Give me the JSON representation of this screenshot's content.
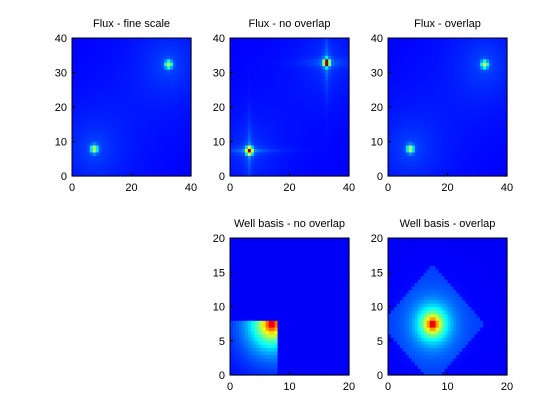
{
  "figure": {
    "background": "#ffffff"
  },
  "chart_data": [
    {
      "type": "heatmap",
      "title": "Flux - fine scale",
      "xlim": [
        0,
        40
      ],
      "ylim": [
        0,
        40
      ],
      "xticks": [
        "0",
        "20",
        "40"
      ],
      "yticks": [
        "0",
        "10",
        "20",
        "30",
        "40"
      ],
      "colormap": "jet",
      "background_level": 0.12,
      "peaks": [
        {
          "x": 7.5,
          "y": 8,
          "max": 0.55,
          "shape": "spot"
        },
        {
          "x": 32.5,
          "y": 32.5,
          "max": 0.55,
          "shape": "spot"
        }
      ]
    },
    {
      "type": "heatmap",
      "title": "Flux - no overlap",
      "xlim": [
        0,
        40
      ],
      "ylim": [
        0,
        40
      ],
      "xticks": [
        "0",
        "20",
        "40"
      ],
      "yticks": [
        "0",
        "10",
        "20",
        "30",
        "40"
      ],
      "colormap": "jet",
      "background_level": 0.12,
      "peaks": [
        {
          "x": 6.5,
          "y": 7.5,
          "max": 0.98,
          "shape": "cross"
        },
        {
          "x": 32.5,
          "y": 33,
          "max": 0.98,
          "shape": "cross"
        }
      ]
    },
    {
      "type": "heatmap",
      "title": "Flux - overlap",
      "xlim": [
        0,
        40
      ],
      "ylim": [
        0,
        40
      ],
      "xticks": [
        "0",
        "20",
        "40"
      ],
      "yticks": [
        "0",
        "10",
        "20",
        "30",
        "40"
      ],
      "colormap": "jet",
      "background_level": 0.12,
      "peaks": [
        {
          "x": 7.5,
          "y": 8,
          "max": 0.55,
          "shape": "spot"
        },
        {
          "x": 32.5,
          "y": 32.5,
          "max": 0.55,
          "shape": "spot"
        }
      ]
    },
    {
      "type": "heatmap",
      "title": "Well basis - no overlap",
      "xlim": [
        0,
        20
      ],
      "ylim": [
        0,
        20
      ],
      "xticks": [
        "0",
        "10",
        "20"
      ],
      "yticks": [
        "0",
        "5",
        "10",
        "15",
        "20"
      ],
      "colormap": "jet",
      "background_level": 0.12,
      "peaks": [
        {
          "x": 7,
          "y": 7.5,
          "max": 1.0,
          "shape": "block",
          "support": [
            0,
            8,
            0,
            8
          ]
        }
      ]
    },
    {
      "type": "heatmap",
      "title": "Well basis - overlap",
      "xlim": [
        0,
        20
      ],
      "ylim": [
        0,
        20
      ],
      "xticks": [
        "0",
        "10",
        "20"
      ],
      "yticks": [
        "0",
        "5",
        "10",
        "15",
        "20"
      ],
      "colormap": "jet",
      "background_level": 0.12,
      "peaks": [
        {
          "x": 7.5,
          "y": 7.5,
          "max": 1.0,
          "shape": "diamond",
          "support": [
            0,
            15,
            0,
            15
          ]
        }
      ]
    }
  ]
}
